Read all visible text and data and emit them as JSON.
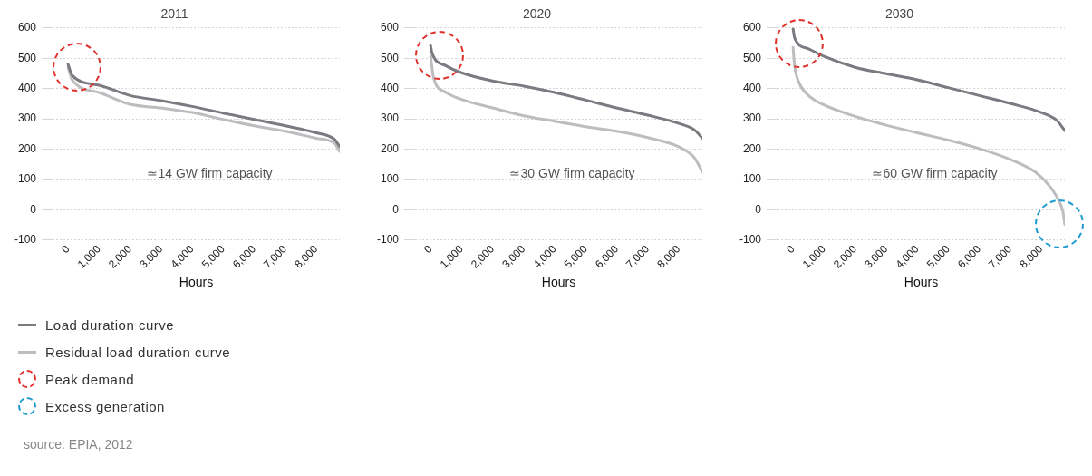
{
  "chart_data": [
    {
      "type": "line",
      "title": "2011",
      "xlabel": "Hours",
      "xlim": [
        -500,
        8760
      ],
      "xticks": [
        {
          "value": 0,
          "label": "0"
        },
        {
          "value": 1000,
          "label": "1,000"
        },
        {
          "value": 2000,
          "label": "2,000"
        },
        {
          "value": 3000,
          "label": "3,000"
        },
        {
          "value": 4000,
          "label": "4,000"
        },
        {
          "value": 5000,
          "label": "5,000"
        },
        {
          "value": 6000,
          "label": "6,000"
        },
        {
          "value": 7000,
          "label": "7,000"
        },
        {
          "value": 8000,
          "label": "8,000"
        }
      ],
      "ylim": [
        -100,
        600
      ],
      "yticks": [
        -100,
        0,
        100,
        200,
        300,
        400,
        500,
        600
      ],
      "grid": "y",
      "legend": "bottom left",
      "series": [
        {
          "name": "Load duration curve",
          "color": "#7a7a80",
          "x": [
            0,
            130,
            1000,
            2000,
            3000,
            4000,
            5000,
            6000,
            7000,
            8000,
            8580,
            8760
          ],
          "values": [
            480,
            444,
            411,
            377,
            360,
            341,
            319,
            298,
            277,
            254,
            233,
            208
          ]
        },
        {
          "name": "Residual load duration curve",
          "color": "#bdbdc0",
          "x": [
            0,
            130,
            1000,
            2000,
            3000,
            4000,
            5000,
            6000,
            7000,
            8000,
            8580,
            8760
          ],
          "values": [
            470,
            429,
            387,
            348,
            336,
            321,
            298,
            277,
            259,
            236,
            220,
            192
          ]
        }
      ],
      "annotations": [
        "≃14 GW firm capacity",
        "Peak demand",
        "Excess generation",
        "source: EPIA, 2012"
      ]
    },
    {
      "type": "line",
      "title": "2020",
      "xlabel": "Hours",
      "xlim": [
        -500,
        8760
      ],
      "xticks": [
        {
          "value": 0,
          "label": "0"
        },
        {
          "value": 1000,
          "label": "1,000"
        },
        {
          "value": 2000,
          "label": "2,000"
        },
        {
          "value": 3000,
          "label": "3,000"
        },
        {
          "value": 4000,
          "label": "4,000"
        },
        {
          "value": 5000,
          "label": "5,000"
        },
        {
          "value": 6000,
          "label": "6,000"
        },
        {
          "value": 7000,
          "label": "7,000"
        },
        {
          "value": 8000,
          "label": "8,000"
        }
      ],
      "ylim": [
        -100,
        600
      ],
      "yticks": [
        -100,
        0,
        100,
        200,
        300,
        400,
        500,
        600
      ],
      "grid": "y",
      "series": [
        {
          "color": "#7a7a80",
          "x": [
            0,
            50,
            500,
            1000,
            2000,
            3000,
            4000,
            5000,
            6000,
            7000,
            8000,
            8500,
            8760
          ],
          "values": [
            542,
            516,
            475,
            452,
            425,
            408,
            387,
            362,
            336,
            312,
            285,
            264,
            236
          ]
        },
        {
          "color": "#bdbdc0",
          "x": [
            0,
            100,
            500,
            1000,
            2000,
            3000,
            4000,
            5000,
            6000,
            7000,
            8000,
            8500,
            8760
          ],
          "values": [
            506,
            434,
            387,
            364,
            336,
            310,
            292,
            274,
            259,
            238,
            208,
            172,
            125
          ]
        }
      ],
      "annotations": [
        "≃30 GW firm capacity"
      ]
    },
    {
      "type": "line",
      "title": "2030",
      "xlabel": "Hours",
      "xlim": [
        -500,
        8760
      ],
      "xticks": [
        {
          "value": 0,
          "label": "0"
        },
        {
          "value": 1000,
          "label": "1,000"
        },
        {
          "value": 2000,
          "label": "2,000"
        },
        {
          "value": 3000,
          "label": "3,000"
        },
        {
          "value": 4000,
          "label": "4,000"
        },
        {
          "value": 5000,
          "label": "5,000"
        },
        {
          "value": 6000,
          "label": "6,000"
        },
        {
          "value": 7000,
          "label": "7,000"
        },
        {
          "value": 8000,
          "label": "8,000"
        }
      ],
      "ylim": [
        -100,
        600
      ],
      "yticks": [
        -100,
        0,
        100,
        200,
        300,
        400,
        500,
        600
      ],
      "grid": "y",
      "series": [
        {
          "color": "#7a7a80",
          "x": [
            0,
            50,
            500,
            1000,
            2000,
            3000,
            4000,
            5000,
            6000,
            7000,
            8000,
            8500,
            8760
          ],
          "values": [
            598,
            567,
            531,
            506,
            470,
            449,
            429,
            403,
            377,
            351,
            321,
            295,
            261
          ]
        },
        {
          "color": "#bdbdc0",
          "x": [
            0,
            50,
            200,
            500,
            1000,
            2000,
            3000,
            4000,
            5000,
            6000,
            7000,
            7800,
            8300,
            8600,
            8700,
            8760
          ],
          "values": [
            536,
            475,
            418,
            377,
            346,
            308,
            279,
            254,
            230,
            202,
            166,
            125,
            74,
            23,
            -8,
            -49
          ]
        }
      ],
      "annotations": [
        "≃60 GW firm capacity"
      ]
    }
  ]
}
